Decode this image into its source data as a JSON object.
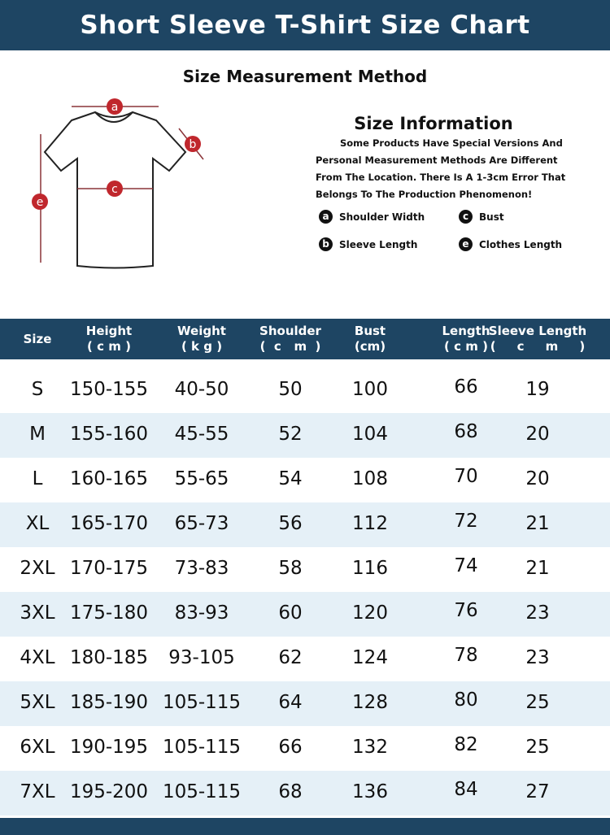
{
  "title": "Short Sleeve T-Shirt Size Chart",
  "method_title": "Size Measurement Method",
  "info": {
    "title": "Size Information",
    "text": "Some Products Have Special Versions And Personal Measurement Methods Are Different From The Location. There Is A 1-3cm Error That Belongs To The Production Phenomenon!"
  },
  "legend": [
    {
      "key": "a",
      "label": "Shoulder Width"
    },
    {
      "key": "c",
      "label": "Bust"
    },
    {
      "key": "b",
      "label": "Sleeve Length"
    },
    {
      "key": "e",
      "label": "Clothes Length"
    }
  ],
  "colors": {
    "header": "#1e4563",
    "row_alt": "#e5f0f7",
    "marker": "#c0272d"
  },
  "table": {
    "headers": [
      "Size",
      "Height\n( c m )",
      "Weight\n( k g )",
      "Shoulder\n(  c   m  )",
      "Bust\n(cm)",
      "Length\n( c m )",
      "Sleeve Length\n(     c     m     )"
    ],
    "rows": [
      [
        "S",
        "150-155",
        "40-50",
        "50",
        "100",
        "66",
        "19"
      ],
      [
        "M",
        "155-160",
        "45-55",
        "52",
        "104",
        "68",
        "20"
      ],
      [
        "L",
        "160-165",
        "55-65",
        "54",
        "108",
        "70",
        "20"
      ],
      [
        "XL",
        "165-170",
        "65-73",
        "56",
        "112",
        "72",
        "21"
      ],
      [
        "2XL",
        "170-175",
        "73-83",
        "58",
        "116",
        "74",
        "21"
      ],
      [
        "3XL",
        "175-180",
        "83-93",
        "60",
        "120",
        "76",
        "23"
      ],
      [
        "4XL",
        "180-185",
        "93-105",
        "62",
        "124",
        "78",
        "23"
      ],
      [
        "5XL",
        "185-190",
        "105-115",
        "64",
        "128",
        "80",
        "25"
      ],
      [
        "6XL",
        "190-195",
        "105-115",
        "66",
        "132",
        "82",
        "25"
      ],
      [
        "7XL",
        "195-200",
        "105-115",
        "68",
        "136",
        "84",
        "27"
      ]
    ]
  }
}
